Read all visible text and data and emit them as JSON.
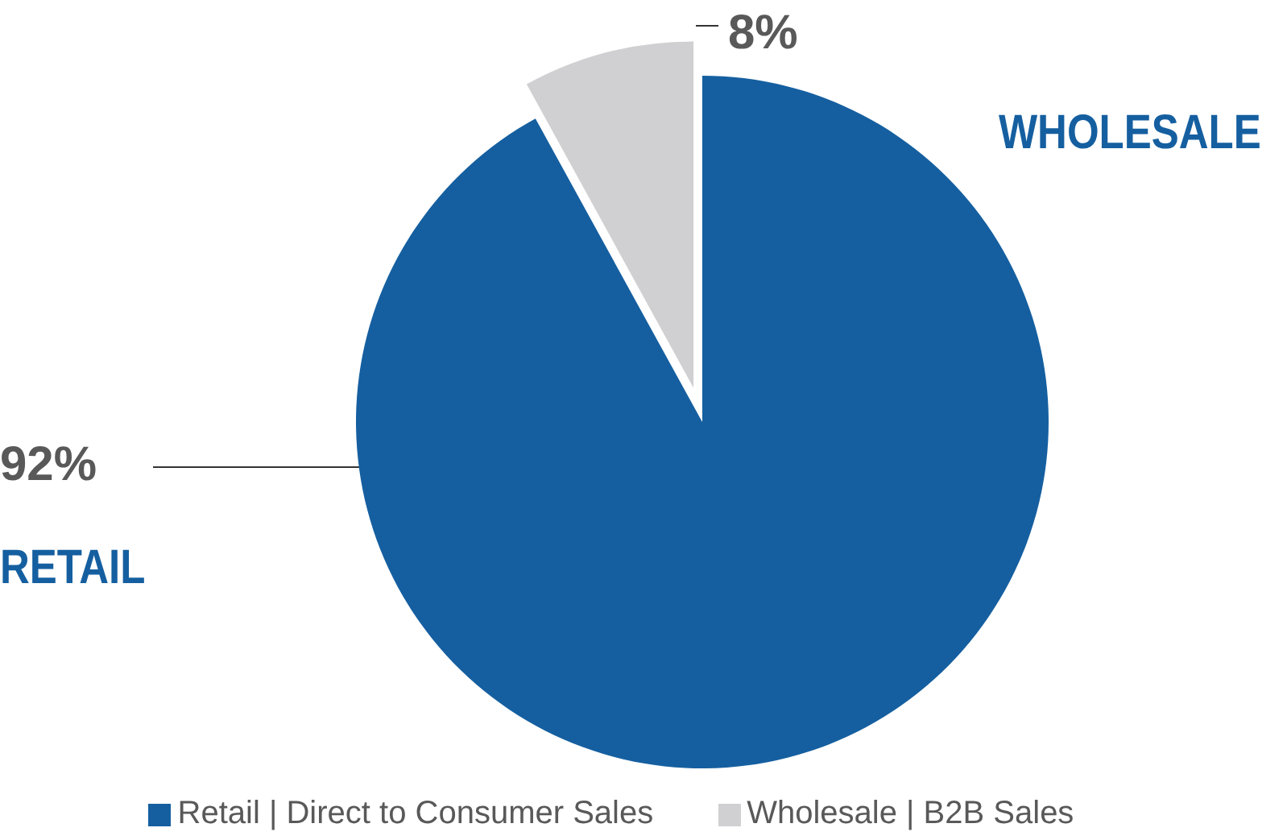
{
  "chart_data": {
    "type": "pie",
    "categories": [
      "Retail | Direct to Consumer Sales",
      "Wholesale | B2B Sales"
    ],
    "values": [
      92,
      8
    ],
    "colors": [
      "#155fa0",
      "#d0cfd1"
    ],
    "value_labels": [
      "92%",
      "8%"
    ],
    "annotations": [
      "RETAIL",
      "WHOLESALE"
    ],
    "legend": "bottom"
  }
}
